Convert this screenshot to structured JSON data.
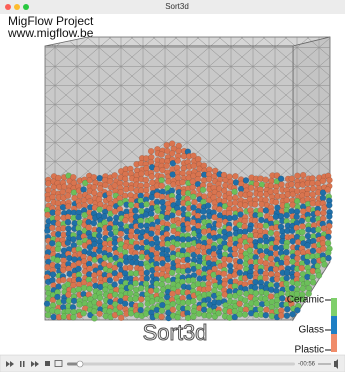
{
  "window": {
    "title": "Sort3d"
  },
  "overlay": {
    "project": "MigFlow Project",
    "url": "www.migflow.be",
    "caption": "Sort3d"
  },
  "legend": {
    "items": [
      "Ceramic",
      "Glass",
      "Plastic"
    ]
  },
  "player": {
    "time": "-00:56"
  }
}
